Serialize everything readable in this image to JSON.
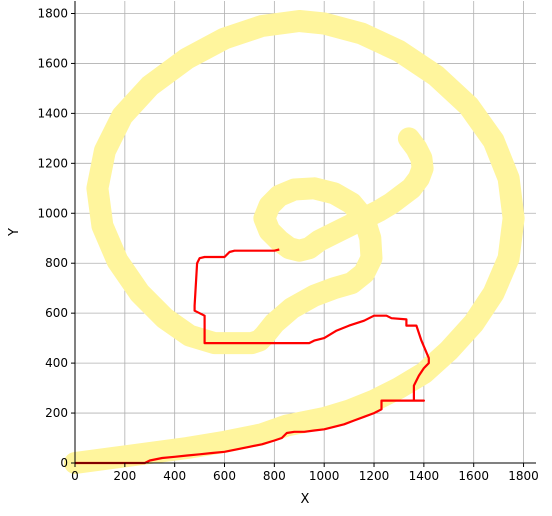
{
  "chart_data": {
    "type": "line",
    "xlabel": "X",
    "ylabel": "Y",
    "xlim": [
      0,
      1850
    ],
    "ylim": [
      0,
      1850
    ],
    "xticks": [
      0,
      200,
      400,
      600,
      800,
      1000,
      1200,
      1400,
      1600,
      1800
    ],
    "yticks": [
      0,
      200,
      400,
      600,
      800,
      1000,
      1200,
      1400,
      1600,
      1800
    ],
    "grid": true,
    "colors": {
      "band": "#fff59d",
      "path": "#ff0000",
      "grid": "#b0b0b0"
    },
    "band": {
      "x": [
        0,
        150,
        300,
        450,
        600,
        750,
        850,
        900,
        1000,
        1100,
        1200,
        1300,
        1400,
        1500,
        1600,
        1680,
        1740,
        1760,
        1740,
        1680,
        1580,
        1450,
        1300,
        1150,
        1000,
        900,
        750,
        600,
        450,
        300,
        190,
        120,
        90,
        110,
        170,
        260,
        360,
        460,
        560,
        640,
        710,
        740,
        760,
        800,
        870,
        960,
        1040,
        1110,
        1160,
        1190,
        1185,
        1160,
        1110,
        1040,
        960,
        880,
        820,
        780,
        760,
        780,
        820,
        860,
        900,
        940,
        980,
        1040,
        1100,
        1160,
        1220,
        1270,
        1310,
        1350,
        1380,
        1395,
        1390,
        1370,
        1340
      ],
      "y": [
        0,
        20,
        40,
        60,
        85,
        115,
        150,
        160,
        180,
        210,
        250,
        300,
        360,
        450,
        560,
        680,
        820,
        980,
        1140,
        1290,
        1430,
        1550,
        1650,
        1720,
        1760,
        1770,
        1750,
        1700,
        1620,
        1510,
        1390,
        1250,
        1100,
        950,
        810,
        680,
        580,
        510,
        480,
        480,
        480,
        490,
        510,
        560,
        620,
        670,
        700,
        720,
        760,
        820,
        900,
        980,
        1040,
        1080,
        1100,
        1095,
        1070,
        1030,
        980,
        930,
        890,
        860,
        850,
        860,
        890,
        920,
        950,
        980,
        1010,
        1040,
        1070,
        1100,
        1140,
        1180,
        1220,
        1260,
        1300
      ]
    },
    "path": {
      "x": [
        0,
        280,
        300,
        350,
        400,
        450,
        500,
        550,
        600,
        650,
        700,
        750,
        800,
        830,
        840,
        850,
        880,
        920,
        960,
        1000,
        1040,
        1080,
        1120,
        1160,
        1200,
        1230,
        1230,
        1300,
        1400,
        1400,
        1360,
        1360,
        1380,
        1400,
        1420,
        1420,
        1390,
        1390,
        1370,
        1330,
        1330,
        1270,
        1250,
        1200,
        1160,
        1100,
        1050,
        1000,
        960,
        940,
        920,
        900,
        880,
        860,
        840,
        820,
        800,
        780,
        520,
        520,
        480,
        480,
        490,
        500,
        520,
        600,
        620,
        640,
        700,
        800,
        820
      ],
      "y": [
        0,
        0,
        10,
        20,
        25,
        30,
        35,
        40,
        45,
        55,
        65,
        75,
        90,
        100,
        110,
        120,
        125,
        125,
        130,
        135,
        145,
        155,
        170,
        185,
        200,
        215,
        250,
        250,
        250,
        250,
        250,
        310,
        350,
        380,
        400,
        420,
        490,
        490,
        550,
        550,
        575,
        580,
        590,
        590,
        570,
        550,
        530,
        500,
        490,
        480,
        480,
        480,
        480,
        480,
        480,
        480,
        480,
        480,
        480,
        590,
        610,
        630,
        800,
        820,
        825,
        825,
        845,
        850,
        850,
        850,
        855
      ]
    }
  }
}
